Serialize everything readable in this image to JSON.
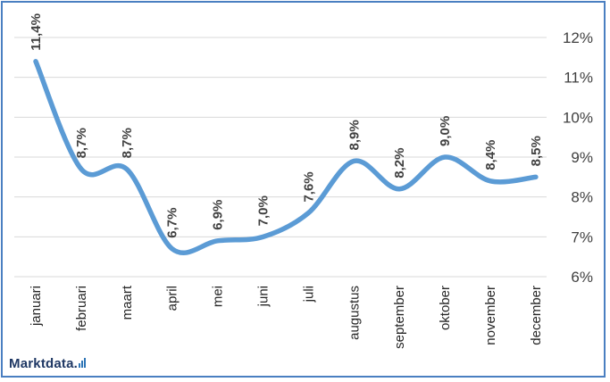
{
  "chart_data": {
    "type": "line",
    "categories": [
      "januari",
      "februari",
      "maart",
      "april",
      "mei",
      "juni",
      "juli",
      "augustus",
      "september",
      "oktober",
      "november",
      "december"
    ],
    "values": [
      11.4,
      8.7,
      8.7,
      6.7,
      6.9,
      7.0,
      7.6,
      8.9,
      8.2,
      9.0,
      8.4,
      8.5
    ],
    "data_labels": [
      "11,4%",
      "8,7%",
      "8,7%",
      "6,7%",
      "6,9%",
      "7,0%",
      "7,6%",
      "8,9%",
      "8,2%",
      "9,0%",
      "8,4%",
      "8,5%"
    ],
    "y_ticks": [
      6,
      7,
      8,
      9,
      10,
      11,
      12
    ],
    "y_tick_labels": [
      "6%",
      "7%",
      "8%",
      "9%",
      "10%",
      "11%",
      "12%"
    ],
    "ylim": [
      6,
      12
    ],
    "y_axis_side": "right",
    "smooth": true,
    "grid": true,
    "line_color": "#5b9bd5",
    "grid_color": "#d9d9d9",
    "title": "",
    "xlabel": "",
    "ylabel": ""
  },
  "brand": {
    "name": "Marktdata.",
    "icon": "bar-chart-icon",
    "color": "#1f3864",
    "accent": "#2e75b6"
  },
  "frame_color": "#4a7fc1"
}
